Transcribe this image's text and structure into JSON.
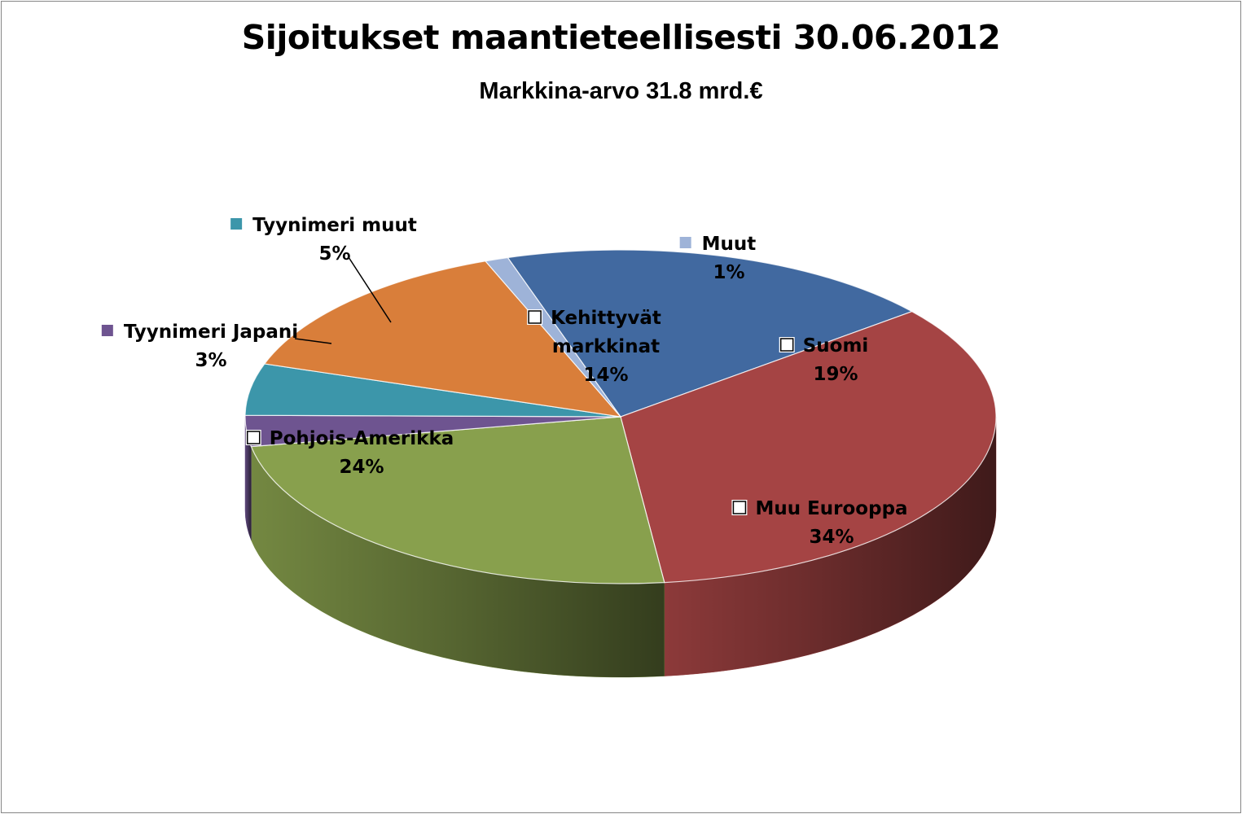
{
  "chart_data": {
    "type": "pie",
    "title": "Sijoitukset maantieteellisesti 30.06.2012",
    "subtitle": "Markkina-arvo 31.8 mrd.€",
    "slices": [
      {
        "name": "Suomi",
        "label_lines": [
          "Suomi"
        ],
        "value": 19,
        "pct": "19%",
        "color": "#4169A0"
      },
      {
        "name": "Muu Eurooppa",
        "label_lines": [
          "Muu Eurooppa"
        ],
        "value": 34,
        "pct": "34%",
        "color": "#A54444"
      },
      {
        "name": "Pohjois-Amerikka",
        "label_lines": [
          "Pohjois-Amerikka"
        ],
        "value": 24,
        "pct": "24%",
        "color": "#88A04D"
      },
      {
        "name": "Tyynimeri Japani",
        "label_lines": [
          "Tyynimeri Japani"
        ],
        "value": 3,
        "pct": "3%",
        "color": "#6E5490"
      },
      {
        "name": "Tyynimeri muut",
        "label_lines": [
          "Tyynimeri muut"
        ],
        "value": 5,
        "pct": "5%",
        "color": "#3C96AA"
      },
      {
        "name": "Kehittyvät markkinat",
        "label_lines": [
          "Kehittyvät",
          "markkinat"
        ],
        "value": 14,
        "pct": "14%",
        "color": "#D97E3A"
      },
      {
        "name": "Muut",
        "label_lines": [
          "Muut"
        ],
        "value": 1,
        "pct": "1%",
        "color": "#9EB3D8"
      }
    ]
  }
}
